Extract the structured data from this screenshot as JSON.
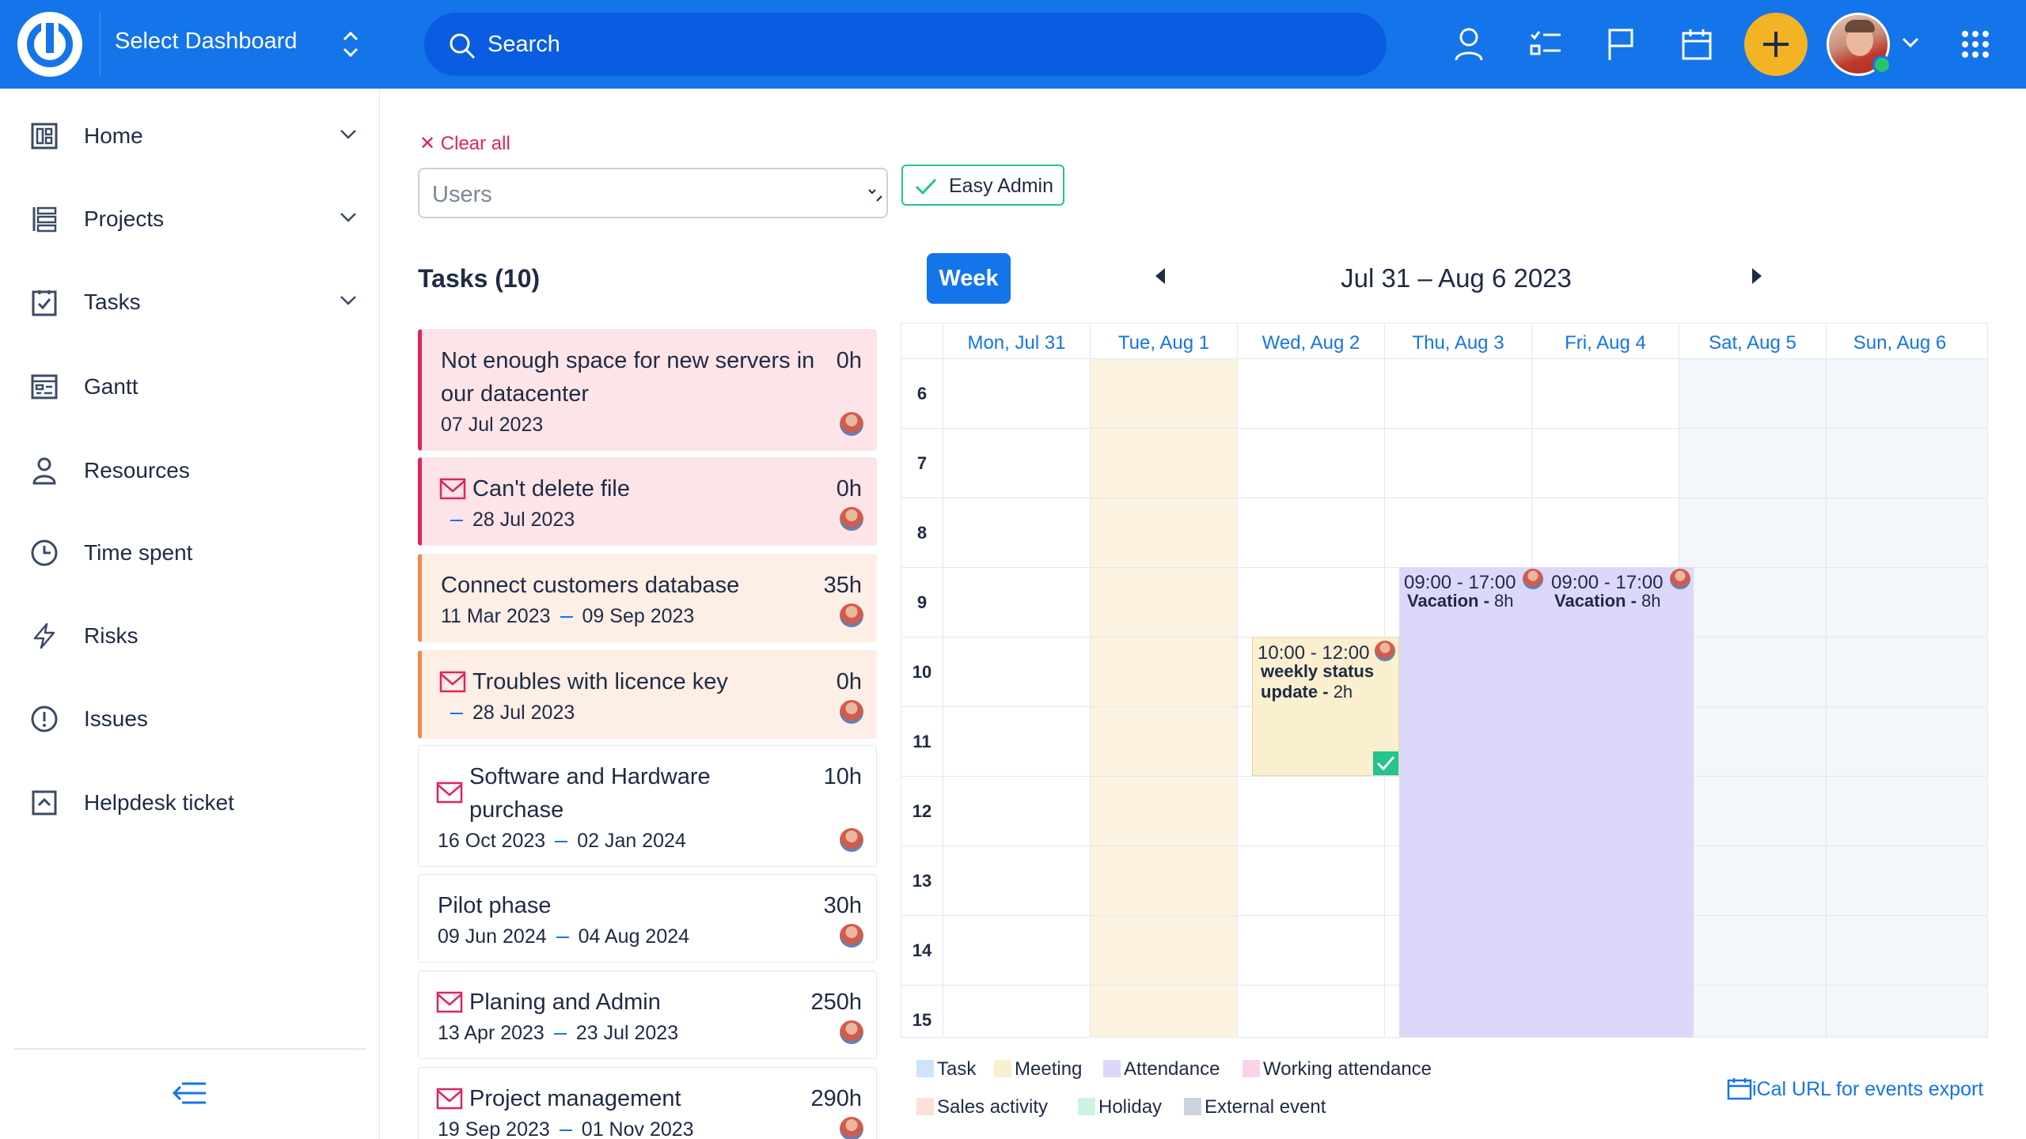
{
  "topbar": {
    "dashboard_label": "Select Dashboard",
    "search_placeholder": "Search",
    "colors": {
      "bar": "#1474ea",
      "add_button": "#f2b325"
    }
  },
  "sidebar": {
    "items": [
      {
        "label": "Home",
        "icon": "home-dashboard-icon",
        "expandable": true
      },
      {
        "label": "Projects",
        "icon": "projects-icon",
        "expandable": true
      },
      {
        "label": "Tasks",
        "icon": "tasks-icon",
        "expandable": true
      },
      {
        "label": "Gantt",
        "icon": "gantt-icon",
        "expandable": false
      },
      {
        "label": "Resources",
        "icon": "person-icon",
        "expandable": false
      },
      {
        "label": "Time spent",
        "icon": "clock-icon",
        "expandable": false
      },
      {
        "label": "Risks",
        "icon": "lightning-icon",
        "expandable": false
      },
      {
        "label": "Issues",
        "icon": "exclamation-icon",
        "expandable": false
      },
      {
        "label": "Helpdesk ticket",
        "icon": "helpdesk-icon",
        "expandable": false
      }
    ]
  },
  "filters": {
    "clear_all": "Clear all",
    "users_placeholder": "Users",
    "selected_chip": "Easy Admin"
  },
  "tasks": {
    "title": "Tasks (10)",
    "items": [
      {
        "title": "Not enough space for new servers in our datacenter",
        "hours": "0h",
        "start": "07 Jul 2023",
        "end": "",
        "style": "pink",
        "mail": false
      },
      {
        "title": "Can't delete file",
        "hours": "0h",
        "start": "",
        "end": "28 Jul 2023",
        "style": "pink",
        "mail": true
      },
      {
        "title": "Connect customers database",
        "hours": "35h",
        "start": "11 Mar 2023",
        "end": "09 Sep 2023",
        "style": "peach",
        "mail": false
      },
      {
        "title": "Troubles with licence key",
        "hours": "0h",
        "start": "",
        "end": "28 Jul 2023",
        "style": "peach",
        "mail": true
      },
      {
        "title": "Software and Hardware purchase",
        "hours": "10h",
        "start": "16 Oct 2023",
        "end": "02 Jan 2024",
        "style": "plain",
        "mail": true
      },
      {
        "title": "Pilot phase",
        "hours": "30h",
        "start": "09 Jun 2024",
        "end": "04 Aug 2024",
        "style": "plain",
        "mail": false
      },
      {
        "title": "Planing and Admin",
        "hours": "250h",
        "start": "13 Apr 2023",
        "end": "23 Jul 2023",
        "style": "plain",
        "mail": true
      },
      {
        "title": "Project management",
        "hours": "290h",
        "start": "19 Sep 2023",
        "end": "01 Nov 2023",
        "style": "plain",
        "mail": true
      }
    ]
  },
  "calendar": {
    "view_button": "Week",
    "range_title": "Jul 31 – Aug 6 2023",
    "days": [
      "Mon, Jul 31",
      "Tue, Aug 1",
      "Wed, Aug 2",
      "Thu, Aug 3",
      "Fri, Aug 4",
      "Sat, Aug 5",
      "Sun, Aug 6"
    ],
    "hours": [
      "6",
      "7",
      "8",
      "9",
      "10",
      "11",
      "12",
      "13",
      "14",
      "15"
    ],
    "events": [
      {
        "day": "Wed, Aug 2",
        "time": "10:00 - 12:00",
        "title": "weekly status update",
        "duration": "2h",
        "type": "Meeting"
      },
      {
        "day": "Thu, Aug 3",
        "time": "09:00 - 17:00",
        "title": "Vacation",
        "duration": "8h",
        "type": "Attendance"
      },
      {
        "day": "Fri, Aug 4",
        "time": "09:00 - 17:00",
        "title": "Vacation",
        "duration": "8h",
        "type": "Attendance"
      }
    ],
    "legend": [
      {
        "label": "Task",
        "color": "#cfe4fb"
      },
      {
        "label": "Meeting",
        "color": "#faefcf"
      },
      {
        "label": "Attendance",
        "color": "#dcd8fa"
      },
      {
        "label": "Working attendance",
        "color": "#f9d3ea"
      },
      {
        "label": "Sales activity",
        "color": "#fde0d6"
      },
      {
        "label": "Holiday",
        "color": "#cdf3e2"
      },
      {
        "label": "External event",
        "color": "#cdd3dc"
      }
    ],
    "ical_link": "iCal URL for events export"
  }
}
